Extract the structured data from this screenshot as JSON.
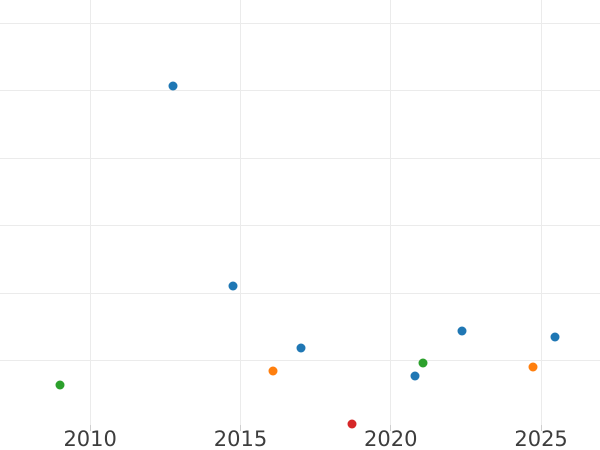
{
  "chart_data": {
    "type": "scatter",
    "title": "",
    "xlabel": "",
    "ylabel": "",
    "x_ticks": [
      2010,
      2015,
      2020,
      2025
    ],
    "x_tick_labels": [
      "2010",
      "2015",
      "2020",
      "2025"
    ],
    "xlim": [
      2007.0,
      2026.96
    ],
    "ylim": [
      -0.33,
      6.35
    ],
    "y_axis_note": "y-axis tick labels are cropped out of the image; y values are expressed in gridline units (1 unit = one horizontal gridline spacing, 0 = level just below plot bottom)",
    "y_gridline_units": [
      1,
      2,
      3,
      4,
      5,
      6
    ],
    "grid": true,
    "legend": false,
    "series": [
      {
        "name": "blue",
        "color": "#1f77b4",
        "points": [
          {
            "x": 2012.76,
            "y": 5.08
          },
          {
            "x": 2014.75,
            "y": 2.1
          },
          {
            "x": 2017.02,
            "y": 1.18
          },
          {
            "x": 2020.82,
            "y": 0.77
          },
          {
            "x": 2022.36,
            "y": 1.43
          },
          {
            "x": 2025.45,
            "y": 1.35
          }
        ]
      },
      {
        "name": "orange",
        "color": "#ff7f0e",
        "points": [
          {
            "x": 2016.08,
            "y": 0.84
          },
          {
            "x": 2024.72,
            "y": 0.9
          }
        ]
      },
      {
        "name": "green",
        "color": "#2ca02c",
        "points": [
          {
            "x": 2009.0,
            "y": 0.63
          },
          {
            "x": 2021.07,
            "y": 0.96
          }
        ]
      },
      {
        "name": "red",
        "color": "#d62728",
        "points": [
          {
            "x": 2018.71,
            "y": 0.05
          }
        ]
      }
    ],
    "marker_diameter_px": 9,
    "colors": {
      "background": "#ffffff",
      "grid": "#ebebeb",
      "tick_mark": "#cfcfcf",
      "tick_label": "#3d3d3d"
    }
  }
}
